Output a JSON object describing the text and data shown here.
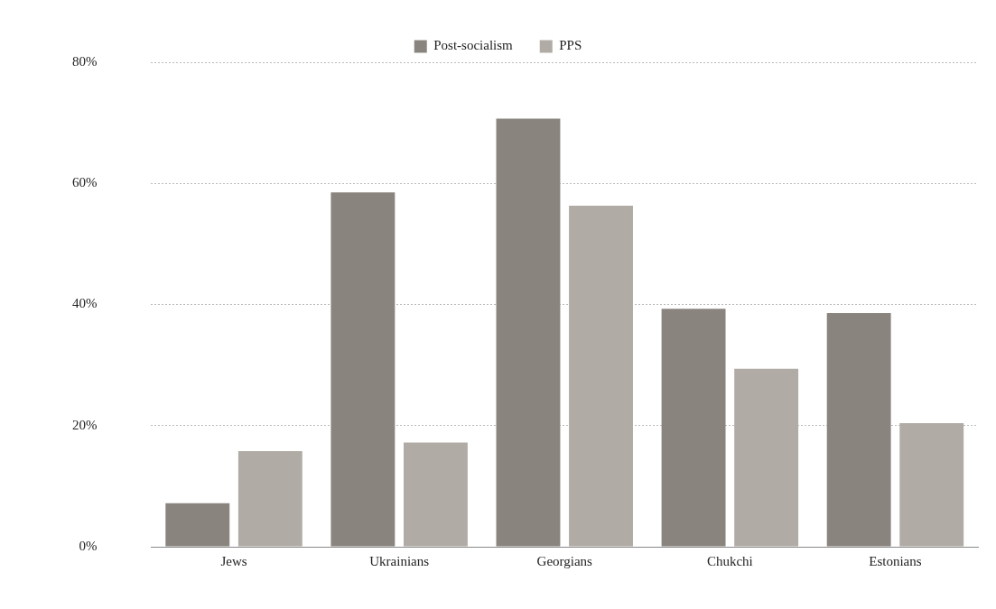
{
  "chart_data": {
    "type": "bar",
    "categories": [
      "Jews",
      "Ukrainians",
      "Georgians",
      "Chukchi",
      "Estonians"
    ],
    "series": [
      {
        "name": "Post-socialism",
        "color": "#8a847f",
        "values": [
          7.2,
          58.5,
          70.7,
          39.3,
          38.6
        ]
      },
      {
        "name": "PPS",
        "color": "#b0aca5",
        "values": [
          15.8,
          17.2,
          56.3,
          29.4,
          20.4
        ]
      }
    ],
    "ylim": [
      0,
      80
    ],
    "yticks": [
      {
        "value": 0,
        "label": "0%"
      },
      {
        "value": 20,
        "label": "20%"
      },
      {
        "value": 40,
        "label": "40%"
      },
      {
        "value": 60,
        "label": "60%"
      },
      {
        "value": 80,
        "label": "80%"
      }
    ],
    "grid": "y",
    "legend": "top"
  }
}
